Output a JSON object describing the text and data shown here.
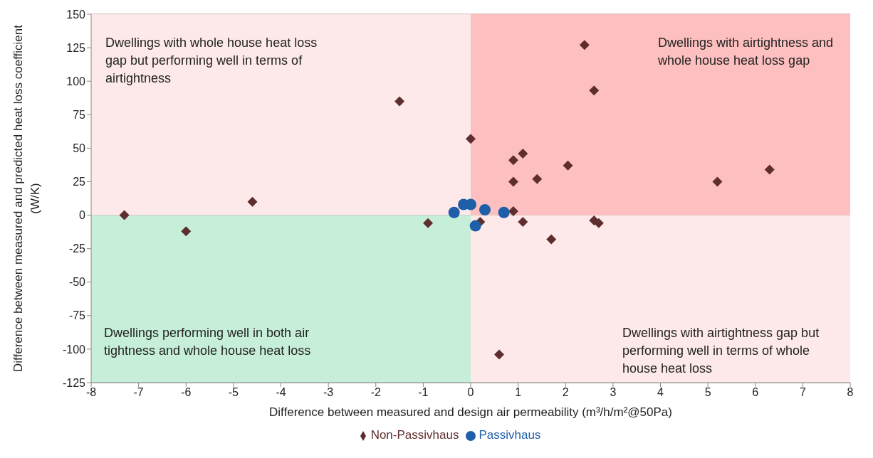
{
  "chart_data": {
    "type": "scatter",
    "xlabel": "Difference between  measured and design air permeability  (m³/h/m²@50Pa)",
    "ylabel": "Difference between measured and predicted heat loss coefficient (W/K)",
    "annotations": [
      "Dwellings with whole house heat loss gap but performing well in terms of airtightness",
      "Dwellings with airtightness and whole house heat loss gap",
      "Dwellings performing well in both air tightness and whole house heat loss",
      "Dwellings with airtightness gap but performing well in terms of whole house heat loss"
    ],
    "series": [
      {
        "name": "Non-Passivhaus",
        "color": "#5e2e2e",
        "marker": "diamond",
        "x": [
          -7.3,
          -6,
          -4.6,
          -1.5,
          -0.9,
          0,
          0.2,
          0.9,
          1.1,
          0.9,
          1.4,
          2.05,
          0.9,
          1.1,
          2.6,
          2.7,
          1.7,
          2.4,
          2.6,
          5.2,
          6.3,
          0.6
        ],
        "values": [
          0,
          -12,
          10,
          85,
          -6,
          57,
          -5,
          41,
          46,
          25,
          27,
          37,
          3,
          -5,
          -4,
          -6,
          -18,
          127,
          93,
          25,
          34,
          -104
        ]
      },
      {
        "name": "Passivhaus",
        "color": "#1f5fa8",
        "marker": "circle",
        "x": [
          -0.35,
          -0.15,
          0,
          0.3,
          0.7,
          0.1
        ],
        "values": [
          2,
          8,
          8,
          4,
          2,
          -8
        ]
      }
    ],
    "xlim": [
      -8,
      8
    ],
    "xticks": [
      -8,
      -7,
      -6,
      -5,
      -4,
      -3,
      -2,
      -1,
      0,
      1,
      2,
      3,
      4,
      5,
      6,
      7,
      8
    ],
    "ylim": [
      -125,
      150
    ],
    "yticks": [
      -125,
      -100,
      -75,
      -50,
      -25,
      0,
      25,
      50,
      75,
      100,
      125,
      150
    ],
    "grid": "y",
    "legend": "bottom"
  }
}
